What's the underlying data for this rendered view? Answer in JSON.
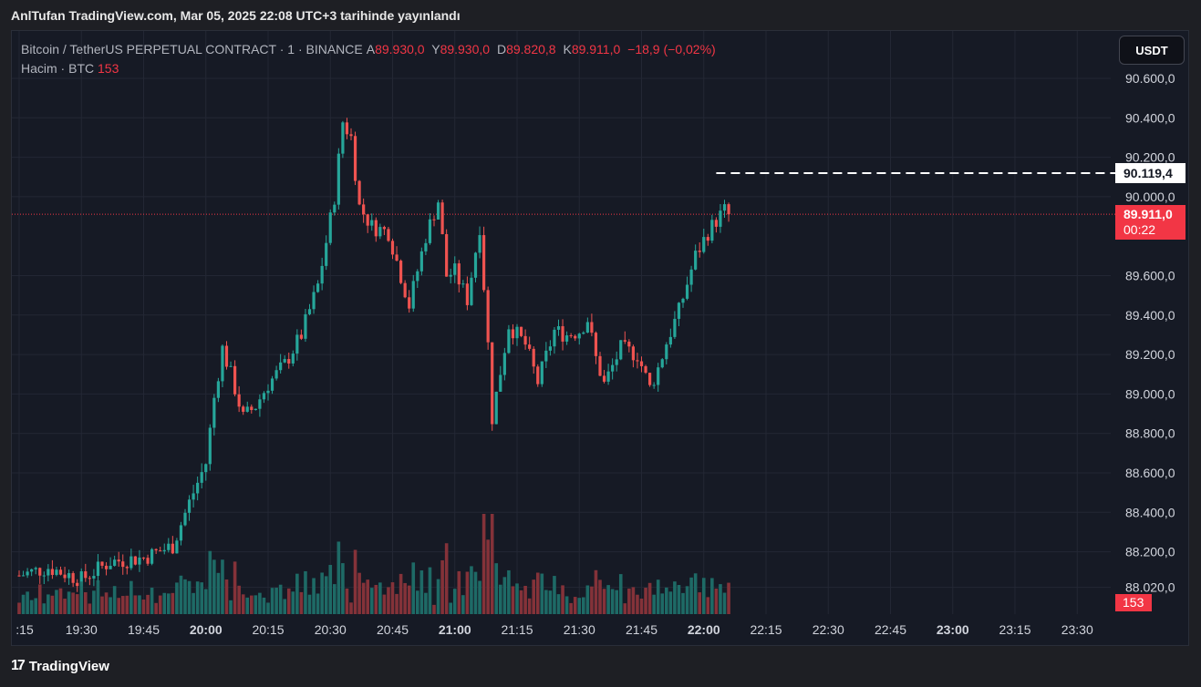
{
  "header": {
    "title": "AnlTufan TradingView.com, Mar 05, 2025 22:08 UTC+3 tarihinde yayınlandı"
  },
  "legend": {
    "symbol": "Bitcoin / TetherUS PERPETUAL CONTRACT · 1 · BINANCE",
    "open_label": "A",
    "open": "89.930,0",
    "high_label": "Y",
    "high": "89.930,0",
    "low_label": "D",
    "low": "89.820,8",
    "close_label": "K",
    "close": "89.911,0",
    "change": "−18,9 (−0,02%)",
    "volume_label": "Hacim · BTC",
    "volume": "153"
  },
  "currency_button": "USDT",
  "price_tags": {
    "high_line": "90.119,4",
    "last": "89.911,0",
    "countdown": "00:22",
    "volume": "153"
  },
  "footer": {
    "brand": "TradingView",
    "logo_glyph": "17"
  },
  "colors": {
    "up": "#26a69a",
    "down": "#ef5350",
    "background": "#161a25",
    "axis_text": "#d1d4dc"
  },
  "chart_data": {
    "type": "candlestick",
    "y_ticks": [
      90600,
      90400,
      90200,
      90000,
      89600,
      89400,
      89200,
      89000,
      88800,
      88600,
      88400,
      88200,
      88020
    ],
    "y_tick_labels": [
      "90.600,0",
      "90.400,0",
      "90.200,0",
      "90.000,0",
      "89.600,0",
      "89.400,0",
      "89.200,0",
      "89.000,0",
      "88.800,0",
      "88.600,0",
      "88.400,0",
      "88.200,0",
      "88.020,0"
    ],
    "x_ticks": [
      ":15",
      "19:30",
      "19:45",
      "20:00",
      "20:15",
      "20:30",
      "20:45",
      "21:00",
      "21:15",
      "21:30",
      "21:45",
      "22:00",
      "22:15",
      "22:30",
      "22:45",
      "23:00",
      "23:15",
      "23:30"
    ],
    "x_ticks_bold": [
      "20:00",
      "21:00",
      "22:00",
      "23:00"
    ],
    "ylim": [
      88000,
      90680
    ],
    "last_price": 89911,
    "high_line": 90119.4,
    "close_path": [
      [
        "19:15",
        88080
      ],
      [
        "19:22",
        88120
      ],
      [
        "19:30",
        88060
      ],
      [
        "19:37",
        88150
      ],
      [
        "19:45",
        88170
      ],
      [
        "19:52",
        88230
      ],
      [
        "19:56",
        88450
      ],
      [
        "20:00",
        88650
      ],
      [
        "20:02",
        88980
      ],
      [
        "20:04",
        89230
      ],
      [
        "20:06",
        89100
      ],
      [
        "20:09",
        88880
      ],
      [
        "20:12",
        88940
      ],
      [
        "20:15",
        89050
      ],
      [
        "20:19",
        89150
      ],
      [
        "20:23",
        89300
      ],
      [
        "20:27",
        89550
      ],
      [
        "20:29",
        89770
      ],
      [
        "20:31",
        90000
      ],
      [
        "20:33",
        90380
      ],
      [
        "20:35",
        90300
      ],
      [
        "20:37",
        89950
      ],
      [
        "20:40",
        89850
      ],
      [
        "20:44",
        89820
      ],
      [
        "20:47",
        89600
      ],
      [
        "20:49",
        89450
      ],
      [
        "20:53",
        89800
      ],
      [
        "20:56",
        89980
      ],
      [
        "20:58",
        89600
      ],
      [
        "21:00",
        89620
      ],
      [
        "21:03",
        89480
      ],
      [
        "21:06",
        89850
      ],
      [
        "21:08",
        89250
      ],
      [
        "21:09",
        88880
      ],
      [
        "21:13",
        89350
      ],
      [
        "21:17",
        89250
      ],
      [
        "21:20",
        89060
      ],
      [
        "21:24",
        89320
      ],
      [
        "21:27",
        89300
      ],
      [
        "21:30",
        89320
      ],
      [
        "21:32",
        89380
      ],
      [
        "21:34",
        89180
      ],
      [
        "21:36",
        89050
      ],
      [
        "21:40",
        89230
      ],
      [
        "21:44",
        89200
      ],
      [
        "21:47",
        89030
      ],
      [
        "21:49",
        89130
      ],
      [
        "21:51",
        89260
      ],
      [
        "21:54",
        89420
      ],
      [
        "21:58",
        89700
      ],
      [
        "22:01",
        89820
      ],
      [
        "22:03",
        89880
      ],
      [
        "22:05",
        89930
      ],
      [
        "22:06",
        89911
      ]
    ],
    "volume": {
      "max": 490,
      "last": 153
    }
  }
}
